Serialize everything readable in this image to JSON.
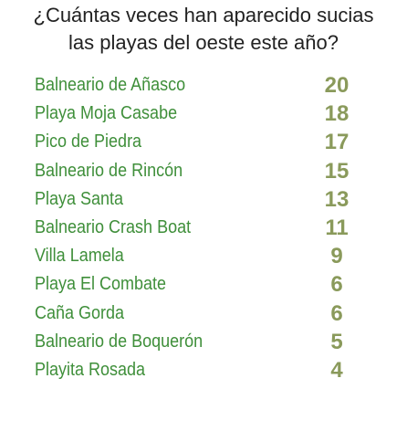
{
  "title": {
    "line1": "¿Cuántas veces han aparecido sucias",
    "line2": "las playas del oeste este año?"
  },
  "colors": {
    "title": "#222222",
    "beach_name": "#3f8f3a",
    "count": "#8a9a5b",
    "background": "#ffffff"
  },
  "beaches": [
    {
      "name": "Balneario de Añasco",
      "count": "20"
    },
    {
      "name": "Playa Moja Casabe",
      "count": "18"
    },
    {
      "name": "Pico de Piedra",
      "count": "17"
    },
    {
      "name": "Balneario de Rincón",
      "count": "15"
    },
    {
      "name": "Playa Santa",
      "count": "13"
    },
    {
      "name": "Balneario Crash Boat",
      "count": "11"
    },
    {
      "name": "Villa Lamela",
      "count": "9"
    },
    {
      "name": "Playa El Combate",
      "count": "6"
    },
    {
      "name": "Caña Gorda",
      "count": "6"
    },
    {
      "name": "Balneario de Boquerón",
      "count": "5"
    },
    {
      "name": "Playita Rosada",
      "count": "4"
    }
  ]
}
